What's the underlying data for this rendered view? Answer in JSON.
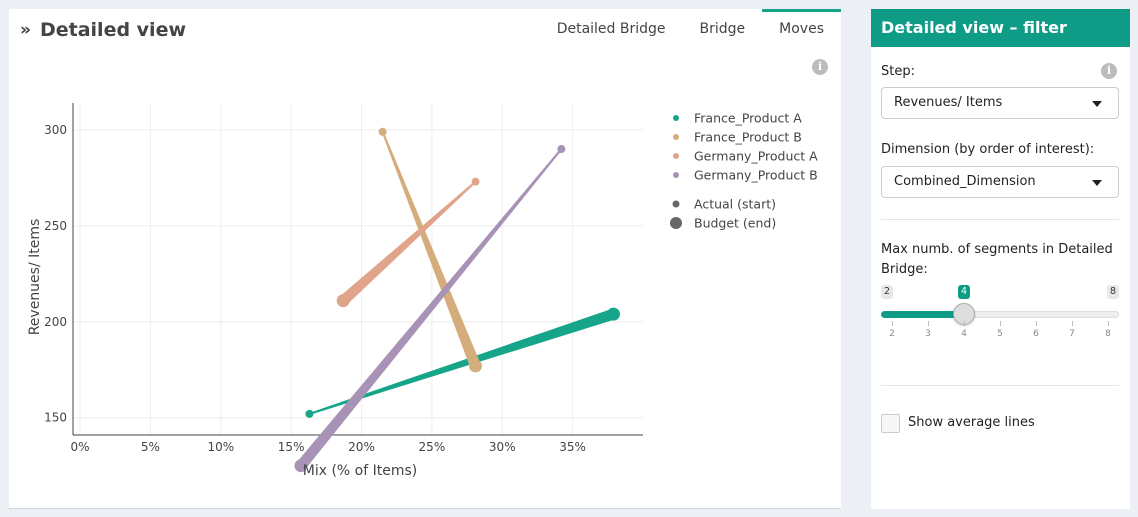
{
  "main": {
    "title_chevron": "»",
    "title": "Detailed view",
    "info_glyph": "i",
    "tabs": [
      {
        "label": "Detailed Bridge",
        "active": false
      },
      {
        "label": "Bridge",
        "active": false
      },
      {
        "label": "Moves",
        "active": true
      }
    ]
  },
  "chart_data": {
    "type": "scatter",
    "xlabel": "Mix (% of Items)",
    "ylabel": "Revenues/ Items",
    "xlim": [
      -0.005,
      0.4
    ],
    "ylim": [
      141,
      314
    ],
    "xticks": [
      0,
      0.05,
      0.1,
      0.15,
      0.2,
      0.25,
      0.3,
      0.35
    ],
    "xtick_labels": [
      "0%",
      "5%",
      "10%",
      "15%",
      "20%",
      "25%",
      "30%",
      "35%"
    ],
    "yticks": [
      150,
      200,
      250,
      300
    ],
    "ytick_labels": [
      "150",
      "200",
      "250",
      "300"
    ],
    "grid": true,
    "legend_position": "right",
    "series": [
      {
        "name": "France_Product A",
        "color": "#17a589",
        "start": {
          "x": 0.163,
          "y": 152
        },
        "end": {
          "x": 0.379,
          "y": 204
        }
      },
      {
        "name": "France_Product B",
        "color": "#d5ad7c",
        "start": {
          "x": 0.215,
          "y": 299
        },
        "end": {
          "x": 0.281,
          "y": 177
        }
      },
      {
        "name": "Germany_Product A",
        "color": "#e0a48a",
        "start": {
          "x": 0.281,
          "y": 273
        },
        "end": {
          "x": 0.187,
          "y": 211
        }
      },
      {
        "name": "Germany_Product B",
        "color": "#a893b6",
        "start": {
          "x": 0.342,
          "y": 290
        },
        "end": {
          "x": 0.157,
          "y": 125
        }
      }
    ],
    "size_legend": [
      {
        "label": "Actual (start)",
        "color": "#666666"
      },
      {
        "label": "Budget (end)",
        "color": "#666666"
      }
    ]
  },
  "sidebar": {
    "header": "Detailed view – filter",
    "step_label": "Step:",
    "info_glyph": "i",
    "step_value": "Revenues/ Items",
    "dimension_label": "Dimension (by order of interest):",
    "dimension_value": "Combined_Dimension",
    "segments_label_1": "Max numb. of segments in Detailed",
    "segments_label_2": "Bridge:",
    "slider": {
      "min": 2,
      "max": 8,
      "value": 4,
      "min_label": "2",
      "max_label": "8",
      "value_label": "4",
      "tick_labels": [
        "2",
        "3",
        "4",
        "5",
        "6",
        "7",
        "8"
      ]
    },
    "show_avg_label": "Show average lines",
    "show_avg_checked": false
  },
  "colors": {
    "accent": "#0e9c86",
    "tab_underline": "#17a589"
  }
}
